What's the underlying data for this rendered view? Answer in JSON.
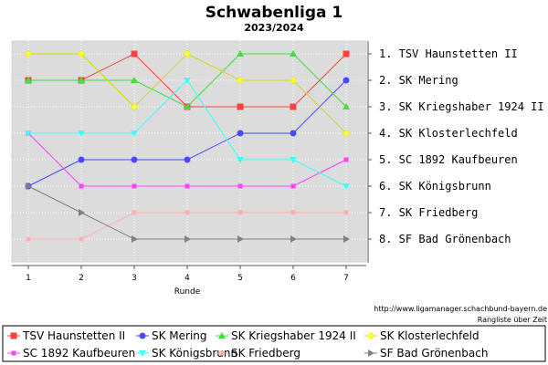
{
  "chart_data": {
    "type": "line",
    "title": "Schwabenliga 1",
    "subtitle": "2023/2024",
    "xlabel": "Runde",
    "x": [
      1,
      2,
      3,
      4,
      5,
      6,
      7
    ],
    "ylim": [
      8,
      1
    ],
    "y_inverted": true,
    "grid": true,
    "legend_position": "bottom",
    "final_ranking": [
      "1. TSV Haunstetten II",
      "2. SK Mering",
      "3. SK Kriegshaber 1924 II",
      "4. SK Klosterlechfeld",
      "5. SC 1892 Kaufbeuren",
      "6. SK Königsbrunn",
      "7. SK Friedberg",
      "8. SF Bad Grönenbach"
    ],
    "series": [
      {
        "name": "TSV Haunstetten II",
        "color": "#ff4040",
        "marker": "square",
        "values": [
          2,
          2,
          1,
          3,
          3,
          3,
          1
        ]
      },
      {
        "name": "SK Mering",
        "color": "#4a4aff",
        "marker": "circle",
        "values": [
          6,
          5,
          5,
          5,
          4,
          4,
          2
        ]
      },
      {
        "name": "SK Kriegshaber 1924 II",
        "color": "#40e040",
        "marker": "triangle-up",
        "values": [
          2,
          2,
          2,
          3,
          1,
          1,
          3
        ]
      },
      {
        "name": "SK Klosterlechfeld",
        "color": "#ffff33",
        "marker": "diamond",
        "values": [
          1,
          1,
          3,
          1,
          2,
          2,
          4
        ]
      },
      {
        "name": "SC 1892 Kaufbeuren",
        "color": "#ff40ff",
        "marker": "small-square",
        "values": [
          4,
          6,
          6,
          6,
          6,
          6,
          5
        ]
      },
      {
        "name": "SK Königsbrunn",
        "color": "#40ffff",
        "marker": "triangle-down",
        "values": [
          4,
          4,
          4,
          2,
          5,
          5,
          6
        ]
      },
      {
        "name": "SK Friedberg",
        "color": "#ffb0b0",
        "marker": "small-square",
        "values": [
          8,
          8,
          7,
          7,
          7,
          7,
          7
        ]
      },
      {
        "name": "SF Bad Grönenbach",
        "color": "#808080",
        "marker": "triangle-right",
        "values": [
          6,
          7,
          8,
          8,
          8,
          8,
          8
        ]
      }
    ]
  },
  "credit": {
    "url": "http://www.ligamanager.schachbund-bayern.de",
    "note": "Rangliste über Zeit"
  }
}
